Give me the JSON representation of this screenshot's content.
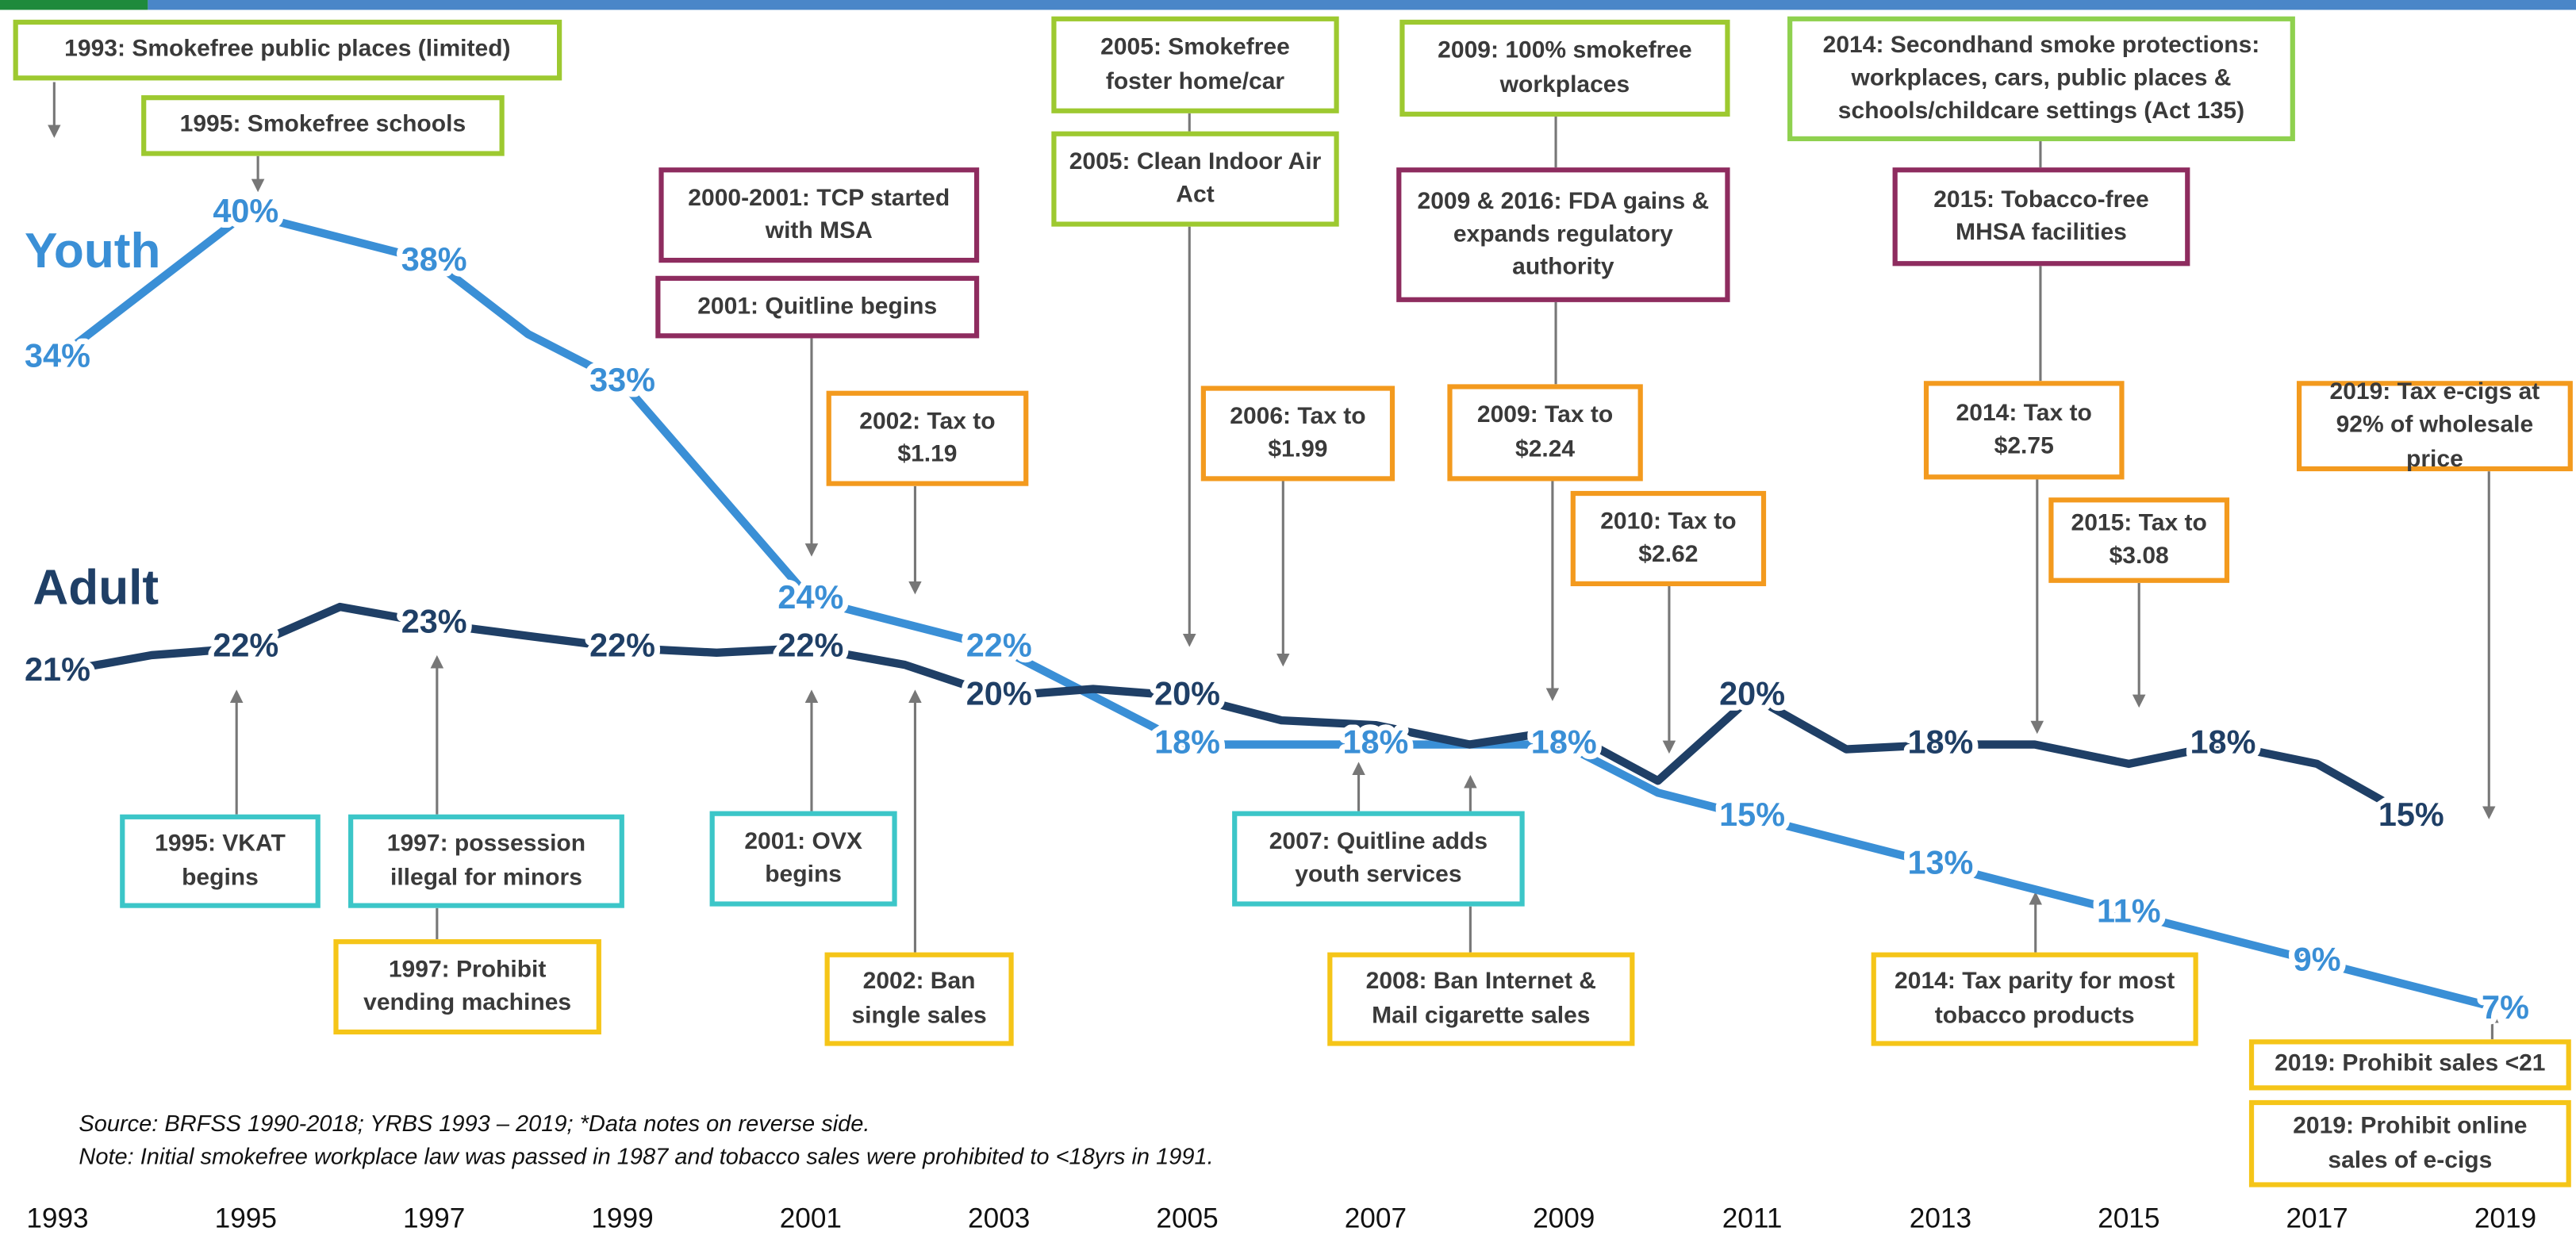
{
  "chart_data": {
    "type": "line",
    "x": [
      1993,
      1994,
      1995,
      1996,
      1997,
      1998,
      1999,
      2000,
      2001,
      2002,
      2003,
      2004,
      2005,
      2006,
      2007,
      2008,
      2009,
      2010,
      2011,
      2012,
      2013,
      2014,
      2015,
      2016,
      2017,
      2018,
      2019
    ],
    "xlim": [
      1993,
      2019
    ],
    "xticks": [
      1993,
      1995,
      1997,
      1999,
      2001,
      2003,
      2005,
      2007,
      2009,
      2011,
      2013,
      2015,
      2017,
      2019
    ],
    "ylim": [
      0,
      45
    ],
    "series": [
      {
        "name": "Youth",
        "color": "#3a8fd6",
        "values": [
          34,
          37,
          40,
          39,
          38,
          35,
          33,
          28.5,
          24,
          23,
          22,
          20,
          18,
          18,
          18,
          18,
          18,
          16,
          15,
          14,
          13,
          12,
          11,
          10,
          9,
          8,
          7
        ],
        "value_labels": [
          "34%",
          null,
          "40%",
          null,
          "38%",
          null,
          "33%",
          null,
          "24%",
          null,
          "22%",
          null,
          "18%",
          null,
          "18%",
          null,
          "18%",
          null,
          "15%",
          null,
          "13%",
          null,
          "11%",
          null,
          "9%",
          null,
          "7%"
        ]
      },
      {
        "name": "Adult",
        "color": "#1f3f66",
        "values": [
          21,
          21.7,
          22,
          23.7,
          23,
          22.5,
          22,
          21.8,
          22,
          21.3,
          20,
          20.3,
          20,
          19,
          18.8,
          18,
          18.6,
          16.5,
          20,
          17.8,
          18,
          18,
          17.2,
          18,
          17.2,
          15,
          null
        ],
        "value_labels": [
          "21%",
          null,
          "22%",
          null,
          "23%",
          null,
          "22%",
          null,
          "22%",
          null,
          "20%",
          null,
          "20%",
          null,
          null,
          null,
          null,
          null,
          "20%",
          null,
          "18%",
          null,
          null,
          "18%",
          null,
          "15%",
          null
        ]
      }
    ],
    "annotations": [
      {
        "text": "1993: Smokefree public places (limited)",
        "color": "#9dc930"
      },
      {
        "text": "1995: Smokefree schools",
        "color": "#9dc930"
      },
      {
        "text": "2000-2001: TCP started with MSA",
        "color": "#8e2c5f"
      },
      {
        "text": "2001: Quitline begins",
        "color": "#8e2c5f"
      },
      {
        "text": "2002: Tax to $1.19",
        "color": "#f39a1e"
      },
      {
        "text": "2005: Smokefree foster home/car",
        "color": "#9dc930"
      },
      {
        "text": "2005: Clean Indoor Air Act",
        "color": "#9dc930"
      },
      {
        "text": "2006: Tax to $1.99",
        "color": "#f39a1e"
      },
      {
        "text": "2009: 100% smokefree workplaces",
        "color": "#9dc930"
      },
      {
        "text": "2009 & 2016: FDA gains & expands regulatory authority",
        "color": "#8e2c5f"
      },
      {
        "text": "2009: Tax to $2.24",
        "color": "#f39a1e"
      },
      {
        "text": "2010: Tax to $2.62",
        "color": "#f39a1e"
      },
      {
        "text": "2014: Secondhand smoke protections: workplaces, cars, public places & schools/childcare settings (Act 135)",
        "color": "#8fd14f"
      },
      {
        "text": "2015: Tobacco-free MHSA facilities",
        "color": "#8e2c5f"
      },
      {
        "text": "2014: Tax to $2.75",
        "color": "#f39a1e"
      },
      {
        "text": "2015: Tax to $3.08",
        "color": "#f39a1e"
      },
      {
        "text": "2019: Tax e-cigs at 92% of wholesale price",
        "color": "#f39a1e"
      },
      {
        "text": "1995: VKAT begins",
        "color": "#3cc6c8"
      },
      {
        "text": "1997: possession illegal for minors",
        "color": "#3cc6c8"
      },
      {
        "text": "1997: Prohibit vending machines",
        "color": "#f5c518"
      },
      {
        "text": "2001: OVX begins",
        "color": "#3cc6c8"
      },
      {
        "text": "2002: Ban single sales",
        "color": "#f5c518"
      },
      {
        "text": "2007: Quitline adds youth services",
        "color": "#3cc6c8"
      },
      {
        "text": "2008: Ban Internet & Mail cigarette sales",
        "color": "#f5c518"
      },
      {
        "text": "2014: Tax parity for most tobacco products",
        "color": "#f5c518"
      },
      {
        "text": "2019: Prohibit sales <21",
        "color": "#f5c518"
      },
      {
        "text": "2019: Prohibit online sales of e-cigs",
        "color": "#f5c518"
      }
    ],
    "notes": [
      "Source: BRFSS 1990-2018; YRBS 1993 – 2019; *Data notes on reverse side.",
      "Note: Initial smokefree workplace law was passed in 1987 and tobacco sales were prohibited to <18yrs in 1991."
    ]
  }
}
